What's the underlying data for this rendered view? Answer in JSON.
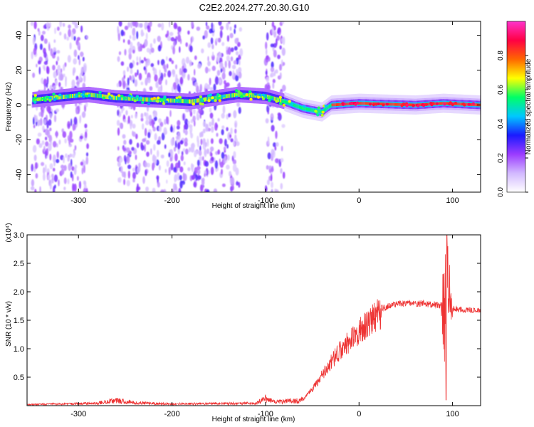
{
  "title": "C2E2.2024.277.20.30.G10",
  "chart_data": [
    {
      "type": "heatmap",
      "xlabel": "Height of straight line (km)",
      "ylabel": "Frequency (Hz)",
      "xlim": [
        -355,
        130
      ],
      "ylim": [
        -50,
        48
      ],
      "xticks": [
        -300,
        -200,
        -100,
        0,
        100
      ],
      "yticks": [
        -40,
        -20,
        0,
        20,
        40
      ],
      "colorbar": {
        "label": "Normalized spectral amplitude",
        "range": [
          0,
          1
        ],
        "ticks": [
          "0.0",
          "0.2",
          "0.4",
          "0.6",
          "0.8"
        ],
        "tick_values": [
          0.0,
          0.2,
          0.4,
          0.6,
          0.8
        ],
        "colors": [
          "#ffffff",
          "#d2b9ff",
          "#9b3cff",
          "#1a1aff",
          "#00c8ff",
          "#00ff66",
          "#ffff00",
          "#ff6600",
          "#ff0044",
          "#ff33cc"
        ]
      },
      "features": {
        "noise_columns_km": [
          [
            -350,
            -290
          ],
          [
            -258,
            -126
          ],
          [
            -100,
            -80
          ]
        ],
        "gaps_km": [
          [
            -290,
            -258
          ],
          [
            -126,
            -100
          ],
          [
            -80,
            130
          ]
        ],
        "carrier_trace": [
          {
            "x": -350,
            "y": 3
          },
          {
            "x": -290,
            "y": 6
          },
          {
            "x": -260,
            "y": 4
          },
          {
            "x": -180,
            "y": 2
          },
          {
            "x": -130,
            "y": 6
          },
          {
            "x": -100,
            "y": 5
          },
          {
            "x": -80,
            "y": 2
          },
          {
            "x": -60,
            "y": -2
          },
          {
            "x": -40,
            "y": -4
          },
          {
            "x": -30,
            "y": 0
          },
          {
            "x": 0,
            "y": 1
          },
          {
            "x": 60,
            "y": 0
          },
          {
            "x": 90,
            "y": 1
          },
          {
            "x": 130,
            "y": 0
          }
        ]
      }
    },
    {
      "type": "line",
      "xlabel": "Height of straight line (km)",
      "ylabel": "SNR (10 * v/v)",
      "scale_label": "(x10⁴)",
      "xlim": [
        -355,
        130
      ],
      "ylim": [
        0,
        3.0
      ],
      "xticks": [
        -300,
        -200,
        -100,
        0,
        100
      ],
      "yticks": [
        "0.5",
        "1.0",
        "1.5",
        "2.0",
        "2.5",
        "3.0"
      ],
      "ytick_values": [
        0.5,
        1.0,
        1.5,
        2.0,
        2.5,
        3.0
      ],
      "color": "#ee3333",
      "envelope": [
        {
          "x": -355,
          "y": 0.02
        },
        {
          "x": -280,
          "y": 0.04
        },
        {
          "x": -260,
          "y": 0.1
        },
        {
          "x": -240,
          "y": 0.05
        },
        {
          "x": -200,
          "y": 0.03
        },
        {
          "x": -110,
          "y": 0.04
        },
        {
          "x": -100,
          "y": 0.12
        },
        {
          "x": -90,
          "y": 0.06
        },
        {
          "x": -60,
          "y": 0.1
        },
        {
          "x": -50,
          "y": 0.3
        },
        {
          "x": -40,
          "y": 0.55
        },
        {
          "x": -30,
          "y": 0.8
        },
        {
          "x": -20,
          "y": 1.0
        },
        {
          "x": -10,
          "y": 1.18
        },
        {
          "x": 0,
          "y": 1.35
        },
        {
          "x": 10,
          "y": 1.52
        },
        {
          "x": 20,
          "y": 1.65
        },
        {
          "x": 30,
          "y": 1.74
        },
        {
          "x": 40,
          "y": 1.79
        },
        {
          "x": 60,
          "y": 1.8
        },
        {
          "x": 80,
          "y": 1.78
        },
        {
          "x": 92,
          "y": 1.75
        },
        {
          "x": 100,
          "y": 1.7
        },
        {
          "x": 115,
          "y": 1.68
        },
        {
          "x": 130,
          "y": 1.66
        }
      ],
      "dip": {
        "x": 93,
        "y": 0.1
      },
      "spike": {
        "x": 94,
        "y": 3.0
      }
    }
  ]
}
